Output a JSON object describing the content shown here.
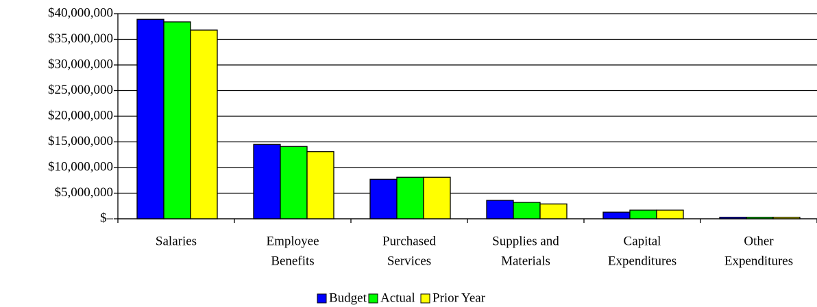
{
  "chart_data": {
    "type": "bar",
    "categories": [
      [
        "Salaries"
      ],
      [
        "Employee",
        "Benefits"
      ],
      [
        "Purchased",
        "Services"
      ],
      [
        "Supplies and",
        "Materials"
      ],
      [
        "Capital",
        "Expenditures"
      ],
      [
        "Other",
        "Expenditures"
      ]
    ],
    "series": [
      {
        "name": "Budget",
        "color": "#0000ff",
        "values": [
          38900000,
          14500000,
          7700000,
          3600000,
          1300000,
          300000
        ]
      },
      {
        "name": "Actual",
        "color": "#00ff00",
        "values": [
          38400000,
          14100000,
          8100000,
          3200000,
          1700000,
          300000
        ]
      },
      {
        "name": "Prior Year",
        "color": "#ffff00",
        "values": [
          36800000,
          13100000,
          8100000,
          2900000,
          1700000,
          300000
        ]
      }
    ],
    "ylim": [
      0,
      40000000
    ],
    "yticks": [
      {
        "value": 0,
        "label": "$–"
      },
      {
        "value": 5000000,
        "label": "$5,000,000"
      },
      {
        "value": 10000000,
        "label": "$10,000,000"
      },
      {
        "value": 15000000,
        "label": "$15,000,000"
      },
      {
        "value": 20000000,
        "label": "$20,000,000"
      },
      {
        "value": 25000000,
        "label": "$25,000,000"
      },
      {
        "value": 30000000,
        "label": "$30,000,000"
      },
      {
        "value": 35000000,
        "label": "$35,000,000"
      },
      {
        "value": 40000000,
        "label": "$40,000,000"
      }
    ],
    "grid": true,
    "legend": "bottom"
  }
}
